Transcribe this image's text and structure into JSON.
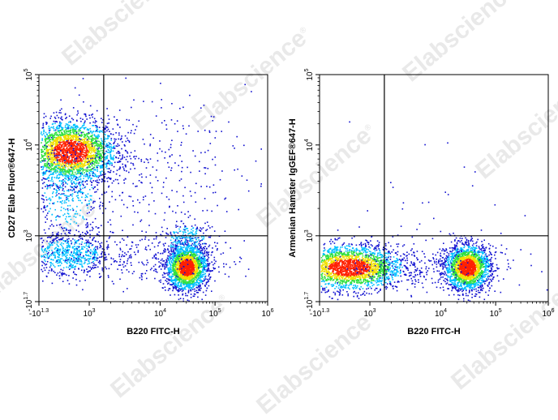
{
  "watermark": {
    "text": "Elabscience",
    "mark": "®"
  },
  "colors": {
    "density_low": "#1010d0",
    "density_mid_low": "#00c0ff",
    "density_mid": "#30e040",
    "density_mid_high": "#f0e000",
    "density_high": "#ff2000",
    "axis": "#000000",
    "gate": "#000000"
  },
  "chart_data": [
    {
      "type": "scatter",
      "subtype": "flow-cytometry-density-dot-plot",
      "xlabel": "B220 FITC-H",
      "ylabel": "CD27 Elab Fluor®647-H",
      "x_scale": "logicle",
      "y_scale": "logicle",
      "xlim": [
        -10,
        1000000
      ],
      "ylim": [
        -10,
        100000
      ],
      "x_ticks": [
        {
          "value": -10,
          "base": "-10",
          "exp": "1.3"
        },
        {
          "value": 1000,
          "base": "10",
          "exp": "3"
        },
        {
          "value": 10000,
          "base": "10",
          "exp": "4"
        },
        {
          "value": 100000,
          "base": "10",
          "exp": "5"
        },
        {
          "value": 1000000,
          "base": "10",
          "exp": "6"
        }
      ],
      "y_ticks": [
        {
          "value": -10,
          "base": "-10",
          "exp": "1.7"
        },
        {
          "value": 1000,
          "base": "10",
          "exp": "3"
        },
        {
          "value": 10000,
          "base": "10",
          "exp": "4"
        },
        {
          "value": 100000,
          "base": "10",
          "exp": "5"
        }
      ],
      "quadrant_gate": {
        "x": 1600,
        "y": 1000
      },
      "populations": [
        {
          "x_center": 250,
          "y_center": 8500,
          "spread_x": 0.1,
          "spread_y": 0.07,
          "count": 2600,
          "shape": "dense"
        },
        {
          "x_center": 200,
          "y_center": 400,
          "spread_x": 0.1,
          "spread_y": 0.05,
          "count": 700,
          "shape": "diffuse"
        },
        {
          "x_center": 200,
          "y_center": 3000,
          "spread_x": 0.08,
          "spread_y": 0.12,
          "count": 450,
          "shape": "diffuse"
        },
        {
          "x_center": 30000,
          "y_center": 150,
          "spread_x": 0.045,
          "spread_y": 0.05,
          "count": 2000,
          "shape": "dense"
        },
        {
          "x_center": 30000,
          "y_center": 800,
          "spread_x": 0.06,
          "spread_y": 0.05,
          "count": 250,
          "shape": "diffuse"
        },
        {
          "x_center": 5000,
          "y_center": 6000,
          "spread_x": 0.2,
          "spread_y": 0.15,
          "count": 350,
          "shape": "sparse"
        },
        {
          "x_center": 5000,
          "y_center": 300,
          "spread_x": 0.2,
          "spread_y": 0.06,
          "count": 250,
          "shape": "sparse"
        }
      ]
    },
    {
      "type": "scatter",
      "subtype": "flow-cytometry-density-dot-plot",
      "xlabel": "B220 FITC-H",
      "ylabel": "Armenian Hamster IgGEF®647-H",
      "x_scale": "logicle",
      "y_scale": "logicle",
      "xlim": [
        -10,
        1000000
      ],
      "ylim": [
        -10,
        100000
      ],
      "x_ticks": [
        {
          "value": -10,
          "base": "-10",
          "exp": "1.3"
        },
        {
          "value": 1000,
          "base": "10",
          "exp": "3"
        },
        {
          "value": 10000,
          "base": "10",
          "exp": "4"
        },
        {
          "value": 100000,
          "base": "10",
          "exp": "5"
        },
        {
          "value": 1000000,
          "base": "10",
          "exp": "6"
        }
      ],
      "y_ticks": [
        {
          "value": -10,
          "base": "-10",
          "exp": "1.7"
        },
        {
          "value": 1000,
          "base": "10",
          "exp": "3"
        },
        {
          "value": 10000,
          "base": "10",
          "exp": "4"
        },
        {
          "value": 100000,
          "base": "10",
          "exp": "5"
        }
      ],
      "quadrant_gate": {
        "x": 1600,
        "y": 1000
      },
      "populations": [
        {
          "x_center": 200,
          "y_center": 150,
          "spread_x": 0.12,
          "spread_y": 0.05,
          "count": 2400,
          "shape": "dense"
        },
        {
          "x_center": 30000,
          "y_center": 150,
          "spread_x": 0.05,
          "spread_y": 0.05,
          "count": 2000,
          "shape": "dense"
        },
        {
          "x_center": 5000,
          "y_center": 200,
          "spread_x": 0.2,
          "spread_y": 0.05,
          "count": 250,
          "shape": "sparse"
        },
        {
          "x_center": 5000,
          "y_center": 2000,
          "spread_x": 0.25,
          "spread_y": 0.15,
          "count": 30,
          "shape": "sparse"
        }
      ]
    }
  ]
}
